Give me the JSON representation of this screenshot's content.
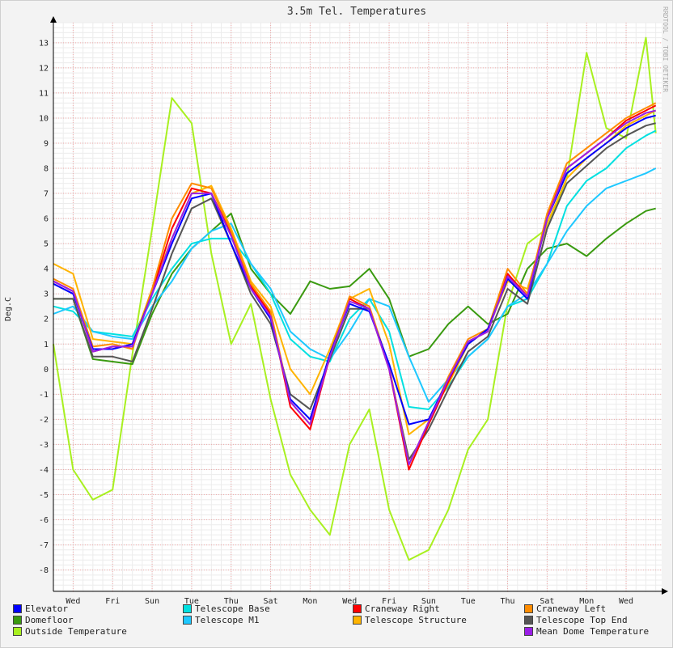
{
  "chart_data": {
    "type": "line",
    "title": "3.5m Tel. Temperatures",
    "ylabel": "Deg.C",
    "xlabel": "",
    "watermark": "RRDTOOL / TOBI OETIKER",
    "ylim": [
      -8.85,
      13.8
    ],
    "y_ticks": [
      -8,
      -7,
      -6,
      -5,
      -4,
      -3,
      -2,
      -1,
      0,
      1,
      2,
      3,
      4,
      5,
      6,
      7,
      8,
      9,
      10,
      11,
      12,
      13
    ],
    "x_ticks": [
      "Wed",
      "Fri",
      "Sun",
      "Tue",
      "Thu",
      "Sat",
      "Mon",
      "Wed",
      "Fri",
      "Sun",
      "Tue",
      "Thu",
      "Sat",
      "Mon",
      "Wed"
    ],
    "xlim": [
      0,
      30.8
    ],
    "grid": true,
    "legend_placement": "bottom",
    "series": [
      {
        "name": "Elevator",
        "color": "#0000ff",
        "x": [
          0,
          1,
          2,
          3,
          4,
          5,
          6,
          7,
          8,
          9,
          10,
          11,
          12,
          13,
          14,
          15,
          16,
          17,
          18,
          19,
          20,
          21,
          22,
          23,
          24,
          25,
          26,
          27,
          28,
          29,
          30,
          30.5
        ],
        "y": [
          3.4,
          3.0,
          0.8,
          0.8,
          1.0,
          3.0,
          5.0,
          6.8,
          7.0,
          5.0,
          3.2,
          2.0,
          -1.2,
          -2.0,
          0.6,
          2.6,
          2.3,
          0.2,
          -2.2,
          -2.0,
          -0.4,
          1.0,
          1.6,
          3.6,
          2.8,
          6.0,
          7.8,
          8.4,
          9.0,
          9.6,
          10.0,
          10.1
        ]
      },
      {
        "name": "Telescope Base",
        "color": "#00e0e0",
        "x": [
          0,
          1,
          2,
          3,
          4,
          5,
          6,
          7,
          8,
          9,
          10,
          11,
          12,
          13,
          14,
          15,
          16,
          17,
          18,
          19,
          20,
          21,
          22,
          23,
          24,
          25,
          26,
          27,
          28,
          29,
          30,
          30.5
        ],
        "y": [
          2.5,
          2.3,
          1.5,
          1.4,
          1.3,
          2.8,
          4.0,
          5.0,
          5.2,
          5.2,
          4.2,
          3.0,
          1.2,
          0.5,
          0.3,
          2.0,
          2.8,
          1.5,
          -1.5,
          -1.6,
          -0.7,
          0.5,
          1.2,
          2.5,
          2.8,
          4.2,
          6.5,
          7.5,
          8.0,
          8.8,
          9.3,
          9.5
        ]
      },
      {
        "name": "Craneway Right",
        "color": "#ff0000",
        "x": [
          0,
          1,
          2,
          3,
          4,
          5,
          6,
          7,
          8,
          9,
          10,
          11,
          12,
          13,
          14,
          15,
          16,
          17,
          18,
          19,
          20,
          21,
          22,
          23,
          24,
          25,
          26,
          27,
          28,
          29,
          30,
          30.5
        ],
        "y": [
          3.5,
          3.1,
          0.7,
          0.9,
          0.9,
          3.1,
          5.6,
          7.2,
          7.0,
          5.4,
          3.3,
          2.2,
          -1.5,
          -2.4,
          0.5,
          2.8,
          2.4,
          0.0,
          -4.0,
          -2.2,
          -0.5,
          1.1,
          1.5,
          3.8,
          2.9,
          6.1,
          8.0,
          8.6,
          9.2,
          9.9,
          10.3,
          10.5
        ]
      },
      {
        "name": "Craneway Left",
        "color": "#ff8c00",
        "x": [
          0,
          1,
          2,
          3,
          4,
          5,
          6,
          7,
          8,
          9,
          10,
          11,
          12,
          13,
          14,
          15,
          16,
          17,
          18,
          19,
          20,
          21,
          22,
          23,
          24,
          25,
          26,
          27,
          28,
          29,
          30,
          30.5
        ],
        "y": [
          3.6,
          3.2,
          0.9,
          1.0,
          0.8,
          3.2,
          6.0,
          7.4,
          7.2,
          5.5,
          3.4,
          2.3,
          -1.3,
          -2.2,
          0.6,
          2.9,
          2.5,
          0.1,
          -3.8,
          -2.1,
          -0.3,
          1.2,
          1.6,
          4.0,
          3.0,
          6.2,
          8.2,
          8.8,
          9.4,
          10.0,
          10.4,
          10.6
        ]
      },
      {
        "name": "Domefloor",
        "color": "#3a9a10",
        "x": [
          0,
          1,
          2,
          3,
          4,
          5,
          6,
          7,
          8,
          9,
          10,
          11,
          12,
          13,
          14,
          15,
          16,
          17,
          18,
          19,
          20,
          21,
          22,
          23,
          24,
          25,
          26,
          27,
          28,
          29,
          30,
          30.5
        ],
        "y": [
          2.8,
          2.8,
          0.4,
          0.3,
          0.2,
          2.2,
          3.8,
          4.8,
          5.5,
          6.2,
          4.0,
          3.0,
          2.2,
          3.5,
          3.2,
          3.3,
          4.0,
          2.8,
          0.5,
          0.8,
          1.8,
          2.5,
          1.8,
          2.2,
          4.0,
          4.8,
          5.0,
          4.5,
          5.2,
          5.8,
          6.3,
          6.4
        ]
      },
      {
        "name": "Telescope M1",
        "color": "#1ec8ff",
        "x": [
          0,
          1,
          2,
          3,
          4,
          5,
          6,
          7,
          8,
          9,
          10,
          11,
          12,
          13,
          14,
          15,
          16,
          17,
          18,
          19,
          20,
          21,
          22,
          23,
          24,
          25,
          26,
          27,
          28,
          29,
          30,
          30.5
        ],
        "y": [
          2.2,
          2.5,
          1.5,
          1.3,
          1.2,
          2.5,
          3.5,
          4.8,
          5.5,
          5.8,
          4.2,
          3.2,
          1.5,
          0.8,
          0.4,
          1.5,
          2.8,
          2.5,
          0.5,
          -1.3,
          -0.4,
          0.5,
          1.2,
          2.5,
          3.0,
          4.2,
          5.5,
          6.5,
          7.2,
          7.5,
          7.8,
          8.0
        ]
      },
      {
        "name": "Telescope Structure",
        "color": "#ffb400",
        "x": [
          0,
          1,
          2,
          3,
          4,
          5,
          6,
          7,
          8,
          9,
          10,
          11,
          12,
          13,
          14,
          15,
          16,
          17,
          18,
          19,
          20,
          21,
          22,
          23,
          24,
          25,
          26,
          27,
          28,
          29,
          30,
          30.5
        ],
        "y": [
          4.2,
          3.8,
          1.2,
          1.1,
          1.0,
          3.2,
          5.2,
          7.0,
          7.3,
          5.6,
          3.5,
          2.5,
          0.0,
          -1.0,
          0.8,
          2.8,
          3.2,
          1.0,
          -2.6,
          -2.0,
          -0.6,
          1.0,
          1.6,
          3.5,
          3.2,
          5.8,
          7.6,
          8.4,
          9.0,
          9.7,
          10.1,
          10.3
        ]
      },
      {
        "name": "Telescope Top End",
        "color": "#555555",
        "x": [
          0,
          1,
          2,
          3,
          4,
          5,
          6,
          7,
          8,
          9,
          10,
          11,
          12,
          13,
          14,
          15,
          16,
          17,
          18,
          19,
          20,
          21,
          22,
          23,
          24,
          25,
          26,
          27,
          28,
          29,
          30,
          30.5
        ],
        "y": [
          2.8,
          2.8,
          0.5,
          0.5,
          0.3,
          2.4,
          4.6,
          6.4,
          6.8,
          5.0,
          3.0,
          1.8,
          -1.0,
          -1.6,
          0.4,
          2.4,
          2.4,
          0.0,
          -3.6,
          -2.4,
          -0.8,
          0.7,
          1.3,
          3.2,
          2.6,
          5.6,
          7.4,
          8.1,
          8.8,
          9.3,
          9.7,
          9.8
        ]
      },
      {
        "name": "Outside Temperature",
        "color": "#a8f020",
        "x": [
          0,
          1,
          2,
          3,
          4,
          5,
          6,
          7,
          8,
          9,
          10,
          11,
          12,
          13,
          14,
          15,
          16,
          17,
          18,
          19,
          20,
          21,
          22,
          23,
          24,
          25,
          26,
          27,
          28,
          29,
          30,
          30.5
        ],
        "y": [
          1.0,
          -4.0,
          -5.2,
          -4.8,
          0.6,
          5.6,
          10.8,
          9.8,
          4.6,
          1.0,
          2.6,
          -1.2,
          -4.2,
          -5.6,
          -6.6,
          -3.0,
          -1.6,
          -5.6,
          -7.6,
          -7.2,
          -5.6,
          -3.2,
          -2.0,
          2.6,
          5.0,
          5.6,
          7.6,
          12.6,
          9.6,
          9.2,
          13.2,
          9.4
        ]
      },
      {
        "name": "Mean Dome Temperature",
        "color": "#9a1ee6",
        "x": [
          0,
          1,
          2,
          3,
          4,
          5,
          6,
          7,
          8,
          9,
          10,
          11,
          12,
          13,
          14,
          15,
          16,
          17,
          18,
          19,
          20,
          21,
          22,
          23,
          24,
          25,
          26,
          27,
          28,
          29,
          30,
          30.5
        ],
        "y": [
          3.5,
          3.1,
          0.7,
          0.9,
          0.9,
          3.0,
          5.2,
          7.0,
          7.0,
          5.3,
          3.2,
          2.1,
          -1.3,
          -2.2,
          0.5,
          2.7,
          2.4,
          0.0,
          -3.8,
          -2.1,
          -0.4,
          1.1,
          1.5,
          3.7,
          2.9,
          6.0,
          8.0,
          8.6,
          9.2,
          9.8,
          10.2,
          10.3
        ]
      }
    ]
  }
}
